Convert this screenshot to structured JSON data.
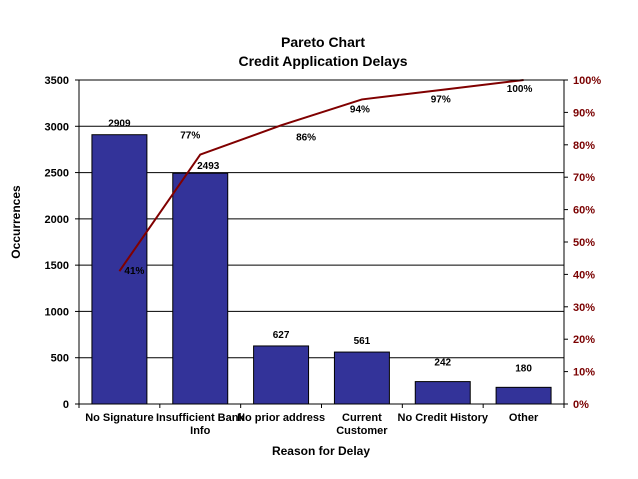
{
  "chart_data": {
    "type": "bar",
    "title": "Pareto Chart",
    "subtitle": "Credit Application Delays",
    "xlabel": "Reason for Delay",
    "ylabel": "Occurrences",
    "categories": [
      "No Signature",
      "Insufficient Bank Info",
      "No prior address",
      "Current Customer",
      "No Credit History",
      "Other"
    ],
    "series": [
      {
        "type": "bar",
        "values": [
          2909,
          2493,
          627,
          561,
          242,
          180
        ],
        "data_labels": [
          "2909",
          "2493",
          "627",
          "561",
          "242",
          "180"
        ],
        "color": "#333399"
      },
      {
        "type": "line",
        "axis": "right",
        "values": [
          0.41,
          0.77,
          0.86,
          0.94,
          0.97,
          1.0
        ],
        "data_labels": [
          "41%",
          "77%",
          "86%",
          "94%",
          "97%",
          "100%"
        ],
        "color": "#800000"
      }
    ],
    "ylim": [
      0,
      3500
    ],
    "yticks": [
      "0",
      "500",
      "1000",
      "1500",
      "2000",
      "2500",
      "3000",
      "3500"
    ],
    "y2lim": [
      0,
      1
    ],
    "y2ticks": [
      "0%",
      "10%",
      "20%",
      "30%",
      "40%",
      "50%",
      "60%",
      "70%",
      "80%",
      "90%",
      "100%"
    ],
    "grid": true,
    "legend": "none"
  }
}
